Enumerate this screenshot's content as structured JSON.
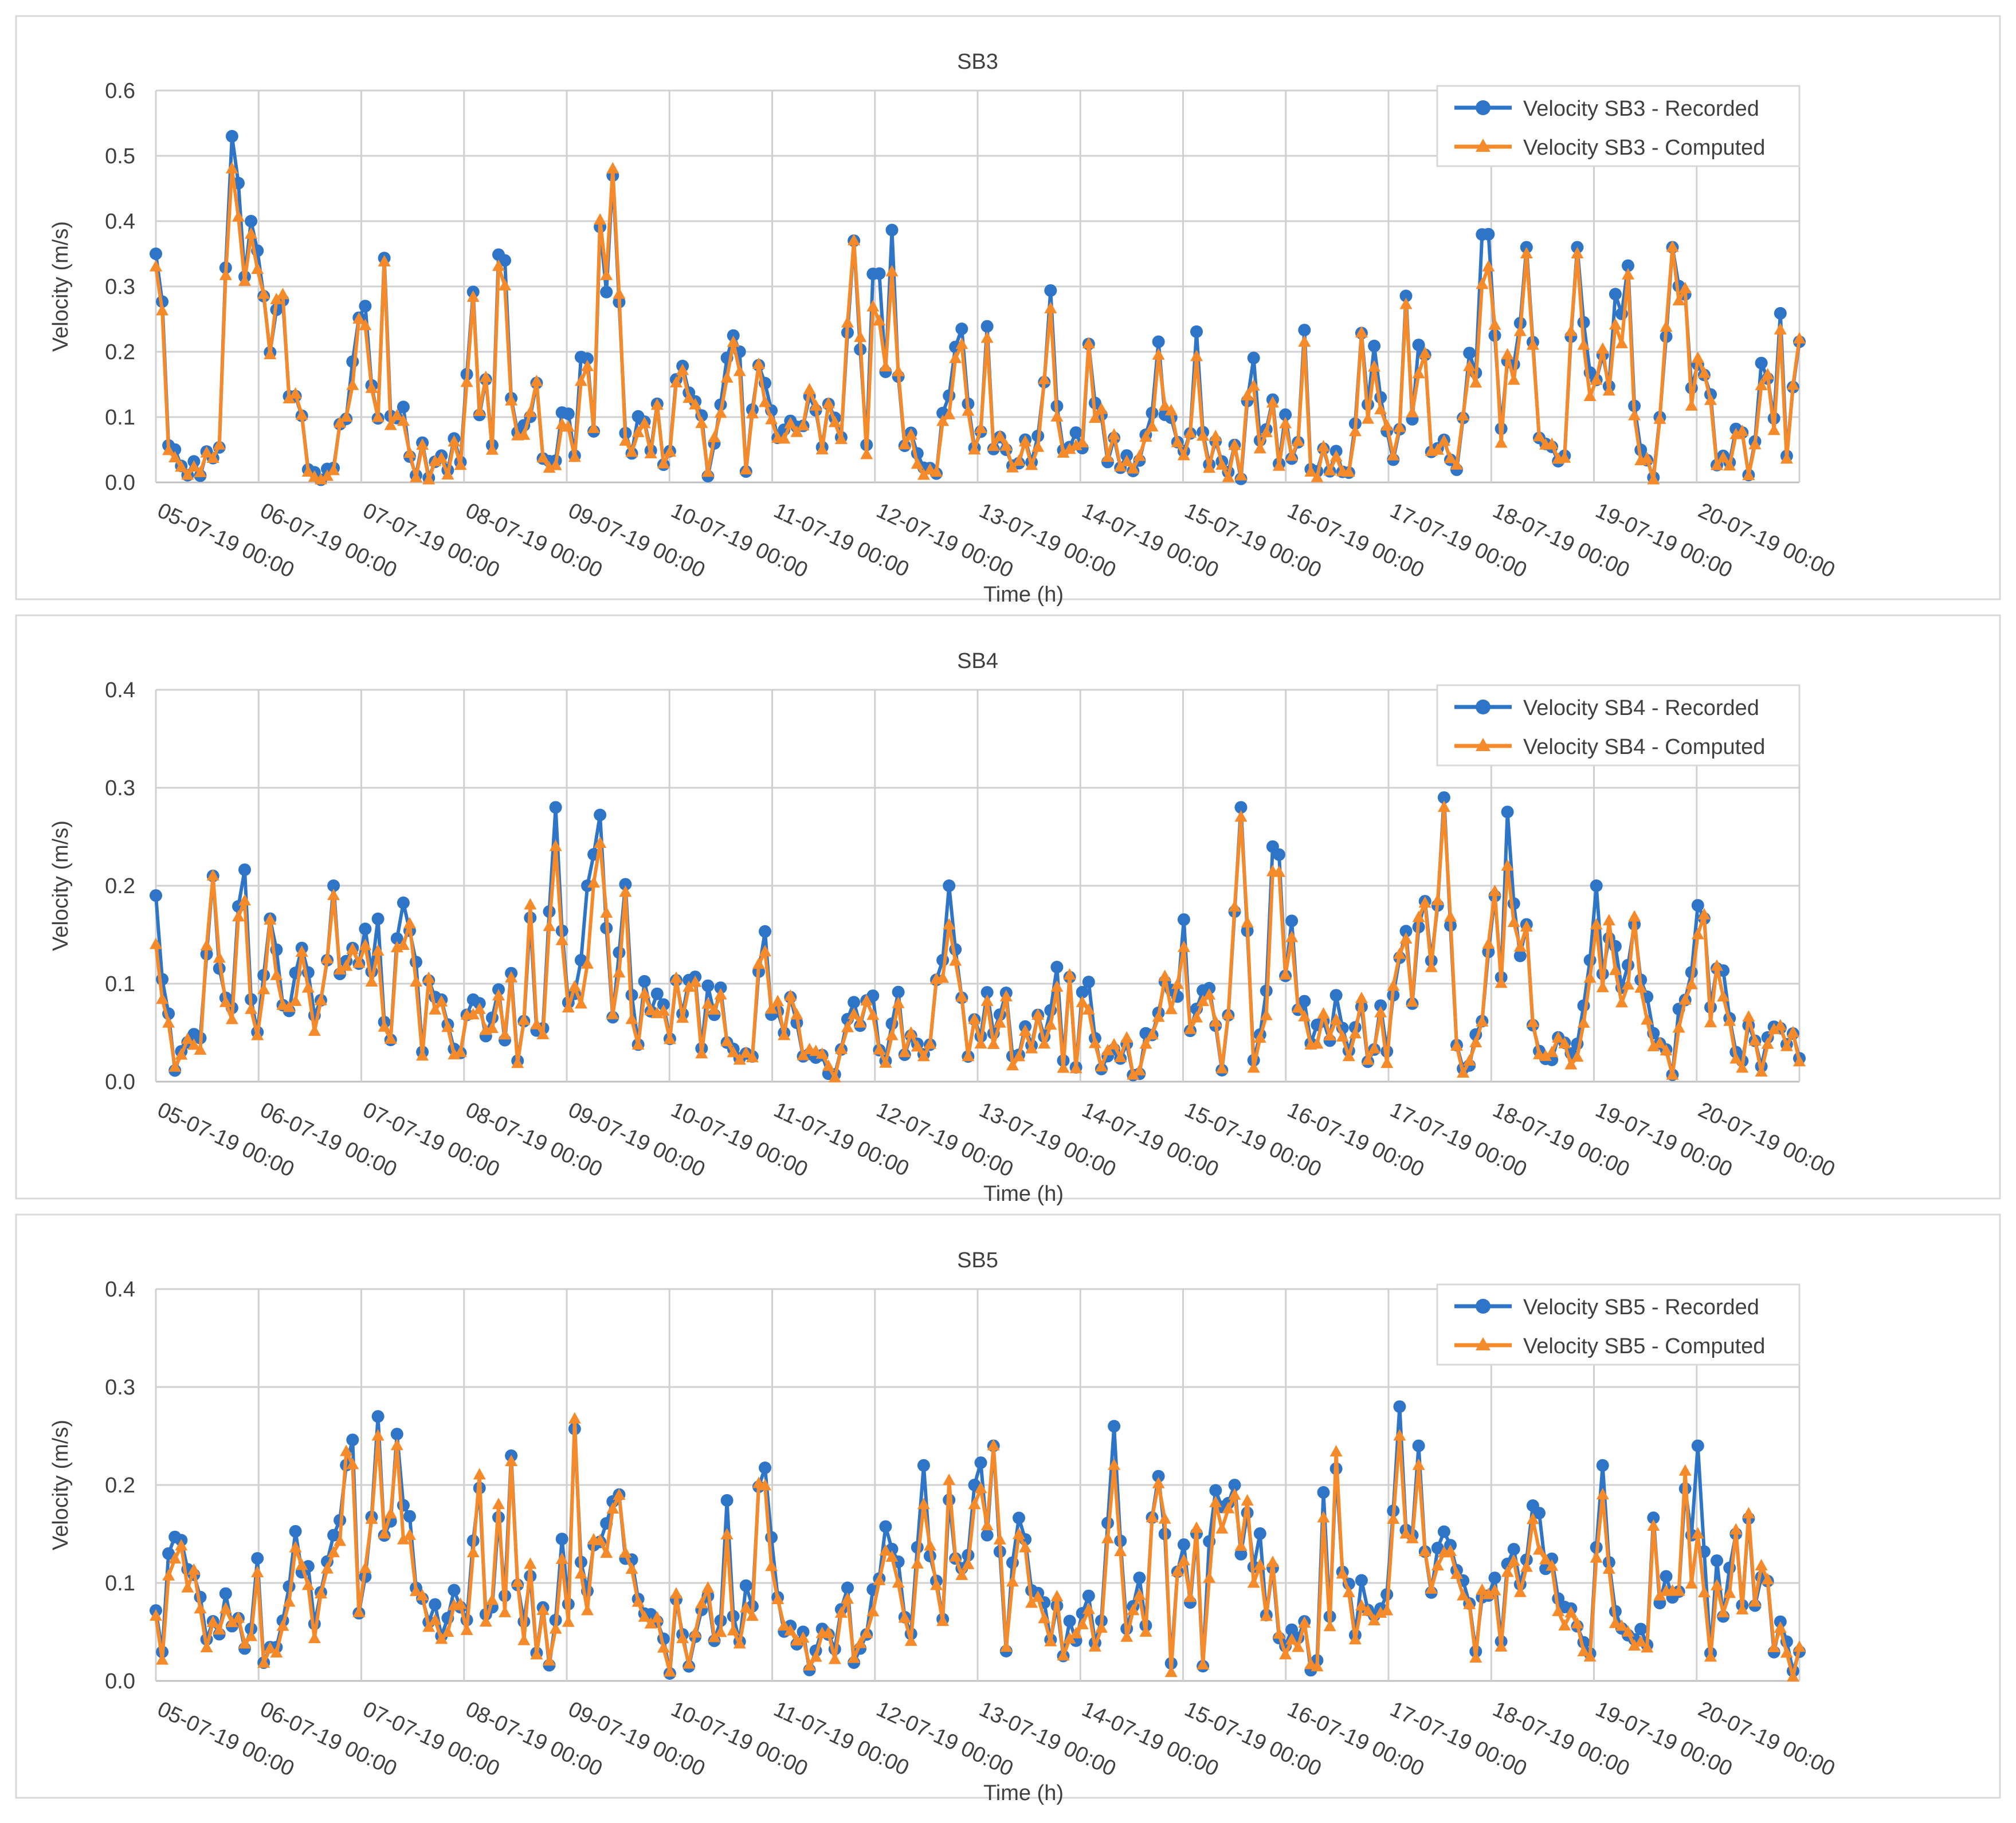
{
  "colors": {
    "recorded": "#2E75C7",
    "computed": "#F58A2A",
    "grid": "#D0D0D0",
    "text": "#404040",
    "frame": "#D9D9D9"
  },
  "chart_data": [
    {
      "type": "line",
      "title": "SB3",
      "xlabel": "Time (h)",
      "ylabel": "Velocity (m/s)",
      "ylim": [
        0,
        0.6
      ],
      "yticks": [
        "0.0",
        "0.1",
        "0.2",
        "0.3",
        "0.4",
        "0.5",
        "0.6"
      ],
      "xlim": [
        0,
        16
      ],
      "x_ticks": [
        "05-07-19 00:00",
        "06-07-19 00:00",
        "07-07-19 00:00",
        "08-07-19 00:00",
        "09-07-19 00:00",
        "10-07-19 00:00",
        "11-07-19 00:00",
        "12-07-19 00:00",
        "13-07-19 00:00",
        "14-07-19 00:00",
        "15-07-19 00:00",
        "16-07-19 00:00",
        "17-07-19 00:00",
        "18-07-19 00:00",
        "19-07-19 00:00",
        "20-07-19 00:00"
      ],
      "legend": "top-right",
      "series_names": [
        "Velocity SB3 - Recorded",
        "Velocity SB3 - Computed"
      ],
      "seed": 3,
      "base": [
        0.34,
        0.05,
        0.02,
        0.04,
        0.02,
        0.06,
        0.25,
        0.45,
        0.22,
        0.26,
        0.39,
        0.12,
        0.1,
        0.03,
        0.03,
        0.05,
        0.3,
        0.28,
        0.03,
        0.23,
        0.26,
        0.12,
        0.05,
        0.04,
        0.05,
        0.1,
        0.06,
        0.29,
        0.2,
        0.3,
        0.22,
        0.1,
        0.12,
        0.03,
        0.05,
        0.1,
        0.28,
        0.05,
        0.47,
        0.2,
        0.12,
        0.08,
        0.11,
        0.05,
        0.12,
        0.14,
        0.11,
        0.06,
        0.13,
        0.16,
        0.07,
        0.14,
        0.11,
        0.18,
        0.06,
        0.09,
        0.12,
        0.1,
        0.08,
        0.2,
        0.12,
        0.32,
        0.36,
        0.1,
        0.05,
        0.02,
        0.04,
        0.1,
        0.2,
        0.08,
        0.24,
        0.07,
        0.05,
        0.03,
        0.07,
        0.1,
        0.23,
        0.1,
        0.08,
        0.15,
        0.1,
        0.05,
        0.04,
        0.02,
        0.08,
        0.28,
        0.1,
        0.05,
        0.2,
        0.12,
        0.05,
        0.06,
        0.04,
        0.25,
        0.1,
        0.08,
        0.18,
        0.2,
        0.05,
        0.03,
        0.03,
        0.05,
        0.15,
        0.32,
        0.1,
        0.05,
        0.3,
        0.26,
        0.06,
        0.05,
        0.05,
        0.15,
        0.34,
        0.18,
        0.05,
        0.35,
        0.25,
        0.05,
        0.04,
        0.04,
        0.08,
        0.2,
        0.25,
        0.1,
        0.35,
        0.1,
        0.05,
        0.05,
        0.2,
        0.3,
        0.07,
        0.2,
        0.05,
        0.06,
        0.08,
        0.05,
        0.25,
        0.3,
        0.06,
        0.18
      ],
      "spikes": [
        [
          0.0,
          0.35,
          0.33
        ],
        [
          0.75,
          0.53,
          0.48
        ],
        [
          0.95,
          0.4,
          0.38
        ],
        [
          2.05,
          0.27,
          0.24
        ],
        [
          4.45,
          0.47,
          0.48
        ],
        [
          6.8,
          0.37,
          0.37
        ],
        [
          12.95,
          0.38,
          0.33
        ],
        [
          13.35,
          0.36,
          0.35
        ],
        [
          13.85,
          0.36,
          0.35
        ],
        [
          14.75,
          0.36,
          0.36
        ]
      ]
    },
    {
      "type": "line",
      "title": "SB4",
      "xlabel": "Time (h)",
      "ylabel": "Velocity (m/s)",
      "ylim": [
        0,
        0.4
      ],
      "yticks": [
        "0.0",
        "0.1",
        "0.2",
        "0.3",
        "0.4"
      ],
      "xlim": [
        0,
        16
      ],
      "x_ticks": [
        "05-07-19 00:00",
        "06-07-19 00:00",
        "07-07-19 00:00",
        "08-07-19 00:00",
        "09-07-19 00:00",
        "10-07-19 00:00",
        "11-07-19 00:00",
        "12-07-19 00:00",
        "13-07-19 00:00",
        "14-07-19 00:00",
        "15-07-19 00:00",
        "16-07-19 00:00",
        "17-07-19 00:00",
        "18-07-19 00:00",
        "19-07-19 00:00",
        "20-07-19 00:00"
      ],
      "legend": "top-right",
      "series_names": [
        "Velocity SB4 - Recorded",
        "Velocity SB4 - Computed"
      ],
      "seed": 4,
      "base": [
        0.15,
        0.05,
        0.03,
        0.05,
        0.04,
        0.06,
        0.1,
        0.18,
        0.14,
        0.15,
        0.13,
        0.05,
        0.08,
        0.14,
        0.07,
        0.04,
        0.1,
        0.15,
        0.17,
        0.12,
        0.05,
        0.12,
        0.1,
        0.06,
        0.08,
        0.04,
        0.05,
        0.08,
        0.07,
        0.09,
        0.05,
        0.1,
        0.12,
        0.07,
        0.04,
        0.05,
        0.09,
        0.16,
        0.2,
        0.12,
        0.16,
        0.1,
        0.07,
        0.06,
        0.07,
        0.08,
        0.07,
        0.06,
        0.08,
        0.05,
        0.02,
        0.06,
        0.1,
        0.12,
        0.08,
        0.04,
        0.03,
        0.02,
        0.03,
        0.04,
        0.1,
        0.06,
        0.08,
        0.05,
        0.06,
        0.05,
        0.04,
        0.08,
        0.1,
        0.12,
        0.11,
        0.12,
        0.08,
        0.06,
        0.05,
        0.04,
        0.06,
        0.08,
        0.1,
        0.08,
        0.07,
        0.05,
        0.03,
        0.04,
        0.04,
        0.07,
        0.12,
        0.16,
        0.15,
        0.1,
        0.08,
        0.05,
        0.06,
        0.03,
        0.06,
        0.1,
        0.2,
        0.13,
        0.08,
        0.1,
        0.08,
        0.06,
        0.05,
        0.04,
        0.06,
        0.08,
        0.1,
        0.13,
        0.1,
        0.12,
        0.08,
        0.05,
        0.04,
        0.03,
        0.08,
        0.18,
        0.2,
        0.15,
        0.07,
        0.05,
        0.03,
        0.05,
        0.06,
        0.07,
        0.09,
        0.12,
        0.14,
        0.1,
        0.07,
        0.05,
        0.04,
        0.06,
        0.1,
        0.12,
        0.08,
        0.1,
        0.07,
        0.06,
        0.05,
        0.04,
        0.06,
        0.07
      ],
      "spikes": [
        [
          0.0,
          0.19,
          0.14
        ],
        [
          0.55,
          0.21,
          0.21
        ],
        [
          1.75,
          0.2,
          0.19
        ],
        [
          3.9,
          0.28,
          0.24
        ],
        [
          4.2,
          0.2,
          0.12
        ],
        [
          7.7,
          0.2,
          0.16
        ],
        [
          10.55,
          0.28,
          0.27
        ],
        [
          12.55,
          0.29,
          0.28
        ],
        [
          14.0,
          0.2,
          0.16
        ],
        [
          15.0,
          0.18,
          0.15
        ]
      ]
    },
    {
      "type": "line",
      "title": "SB5",
      "xlabel": "Time (h)",
      "ylabel": "Velocity (m/s)",
      "ylim": [
        0,
        0.4
      ],
      "yticks": [
        "0.0",
        "0.1",
        "0.2",
        "0.3",
        "0.4"
      ],
      "xlim": [
        0,
        16
      ],
      "x_ticks": [
        "05-07-19 00:00",
        "06-07-19 00:00",
        "07-07-19 00:00",
        "08-07-19 00:00",
        "09-07-19 00:00",
        "10-07-19 00:00",
        "11-07-19 00:00",
        "12-07-19 00:00",
        "13-07-19 00:00",
        "14-07-19 00:00",
        "15-07-19 00:00",
        "16-07-19 00:00",
        "17-07-19 00:00",
        "18-07-19 00:00",
        "19-07-19 00:00",
        "20-07-19 00:00"
      ],
      "legend": "top-right",
      "series_names": [
        "Velocity SB5 - Recorded",
        "Velocity SB5 - Computed"
      ],
      "seed": 5,
      "base": [
        0.05,
        0.1,
        0.12,
        0.08,
        0.05,
        0.08,
        0.12,
        0.06,
        0.05,
        0.1,
        0.05,
        0.05,
        0.12,
        0.08,
        0.09,
        0.08,
        0.16,
        0.18,
        0.1,
        0.08,
        0.12,
        0.2,
        0.1,
        0.06,
        0.05,
        0.04,
        0.08,
        0.12,
        0.17,
        0.1,
        0.18,
        0.14,
        0.12,
        0.06,
        0.03,
        0.12,
        0.2,
        0.14,
        0.1,
        0.15,
        0.12,
        0.07,
        0.1,
        0.05,
        0.06,
        0.08,
        0.05,
        0.06,
        0.1,
        0.14,
        0.12,
        0.08,
        0.16,
        0.1,
        0.08,
        0.06,
        0.04,
        0.05,
        0.04,
        0.06,
        0.08,
        0.1,
        0.09,
        0.15,
        0.12,
        0.1,
        0.15,
        0.12,
        0.16,
        0.08,
        0.1,
        0.22,
        0.12,
        0.1,
        0.15,
        0.08,
        0.06,
        0.08,
        0.05,
        0.1,
        0.06,
        0.08,
        0.05,
        0.2,
        0.1,
        0.12,
        0.16,
        0.1,
        0.08,
        0.12,
        0.1,
        0.15,
        0.12,
        0.15,
        0.18,
        0.1,
        0.08,
        0.03,
        0.04,
        0.05,
        0.12,
        0.15,
        0.1,
        0.08,
        0.06,
        0.05,
        0.08,
        0.06,
        0.05,
        0.06,
        0.2,
        0.22,
        0.18,
        0.15,
        0.1,
        0.12,
        0.08,
        0.1,
        0.12,
        0.16,
        0.12,
        0.1,
        0.04,
        0.05,
        0.03,
        0.06,
        0.1,
        0.08,
        0.15,
        0.12,
        0.1,
        0.15,
        0.08,
        0.06,
        0.1,
        0.18,
        0.15,
        0.12,
        0.08,
        0.06,
        0.05,
        0.06
      ],
      "spikes": [
        [
          2.15,
          0.27,
          0.25
        ],
        [
          7.45,
          0.22,
          0.18
        ],
        [
          7.95,
          0.2,
          0.18
        ],
        [
          8.15,
          0.24,
          0.24
        ],
        [
          9.3,
          0.26,
          0.22
        ],
        [
          12.1,
          0.28,
          0.25
        ],
        [
          12.3,
          0.24,
          0.22
        ],
        [
          14.1,
          0.22,
          0.19
        ],
        [
          15.0,
          0.24,
          0.15
        ]
      ]
    }
  ]
}
